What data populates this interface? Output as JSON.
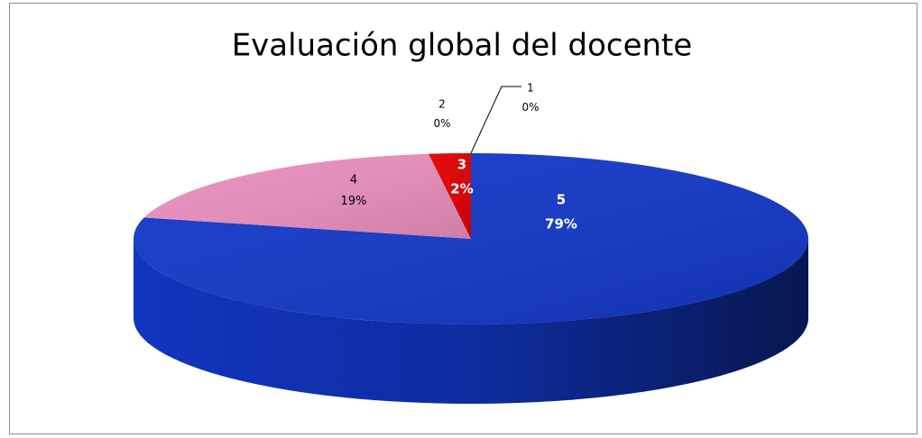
{
  "chart_data": {
    "type": "pie",
    "title": "Evaluación global del docente",
    "categories": [
      "5",
      "4",
      "3",
      "2",
      "1"
    ],
    "values": [
      79,
      19,
      2,
      0,
      0
    ],
    "value_labels": [
      "79%",
      "19%",
      "2%",
      "0%",
      "0%"
    ],
    "colors": [
      "#1238c8",
      "#ea8fbe",
      "#e00000",
      "#9bbb59",
      "#8064a2"
    ]
  }
}
